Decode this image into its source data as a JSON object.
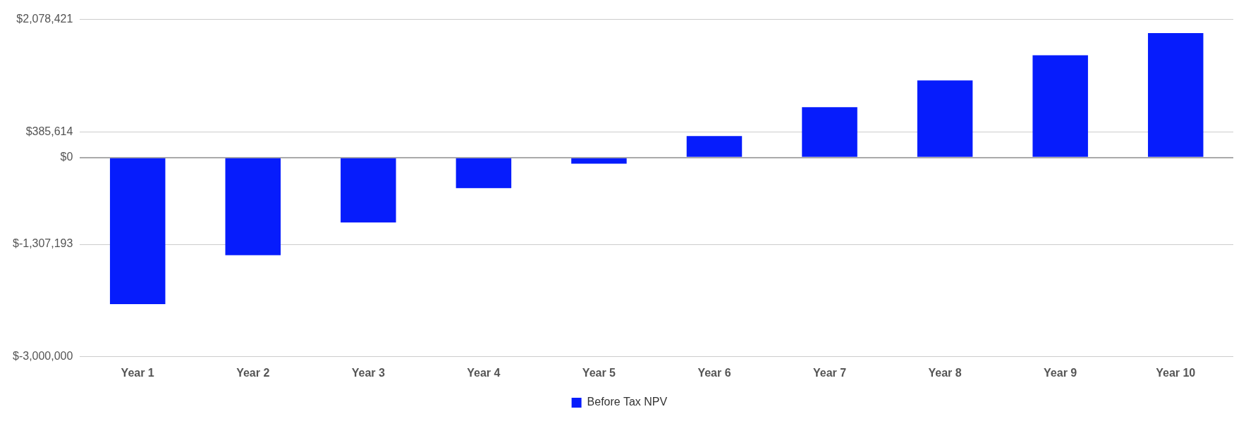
{
  "chart_data": {
    "type": "bar",
    "categories": [
      "Year 1",
      "Year 2",
      "Year 3",
      "Year 4",
      "Year 5",
      "Year 6",
      "Year 7",
      "Year 8",
      "Year 9",
      "Year 10"
    ],
    "series": [
      {
        "name": "Before Tax NPV",
        "color": "#061cfc",
        "values": [
          -2206000,
          -1471000,
          -977000,
          -460000,
          -92000,
          322000,
          758000,
          1160000,
          1540000,
          1873000
        ]
      }
    ],
    "ylim": [
      -3000000,
      2078421
    ],
    "yticks": [
      {
        "value": -3000000,
        "label": "$-3,000,000"
      },
      {
        "value": -1307193,
        "label": "$-1,307,193"
      },
      {
        "value": 0,
        "label": "$0"
      },
      {
        "value": 385614,
        "label": "$385,614"
      },
      {
        "value": 2078421,
        "label": "$2,078,421"
      }
    ],
    "grid": "y",
    "legend": "bottom"
  }
}
